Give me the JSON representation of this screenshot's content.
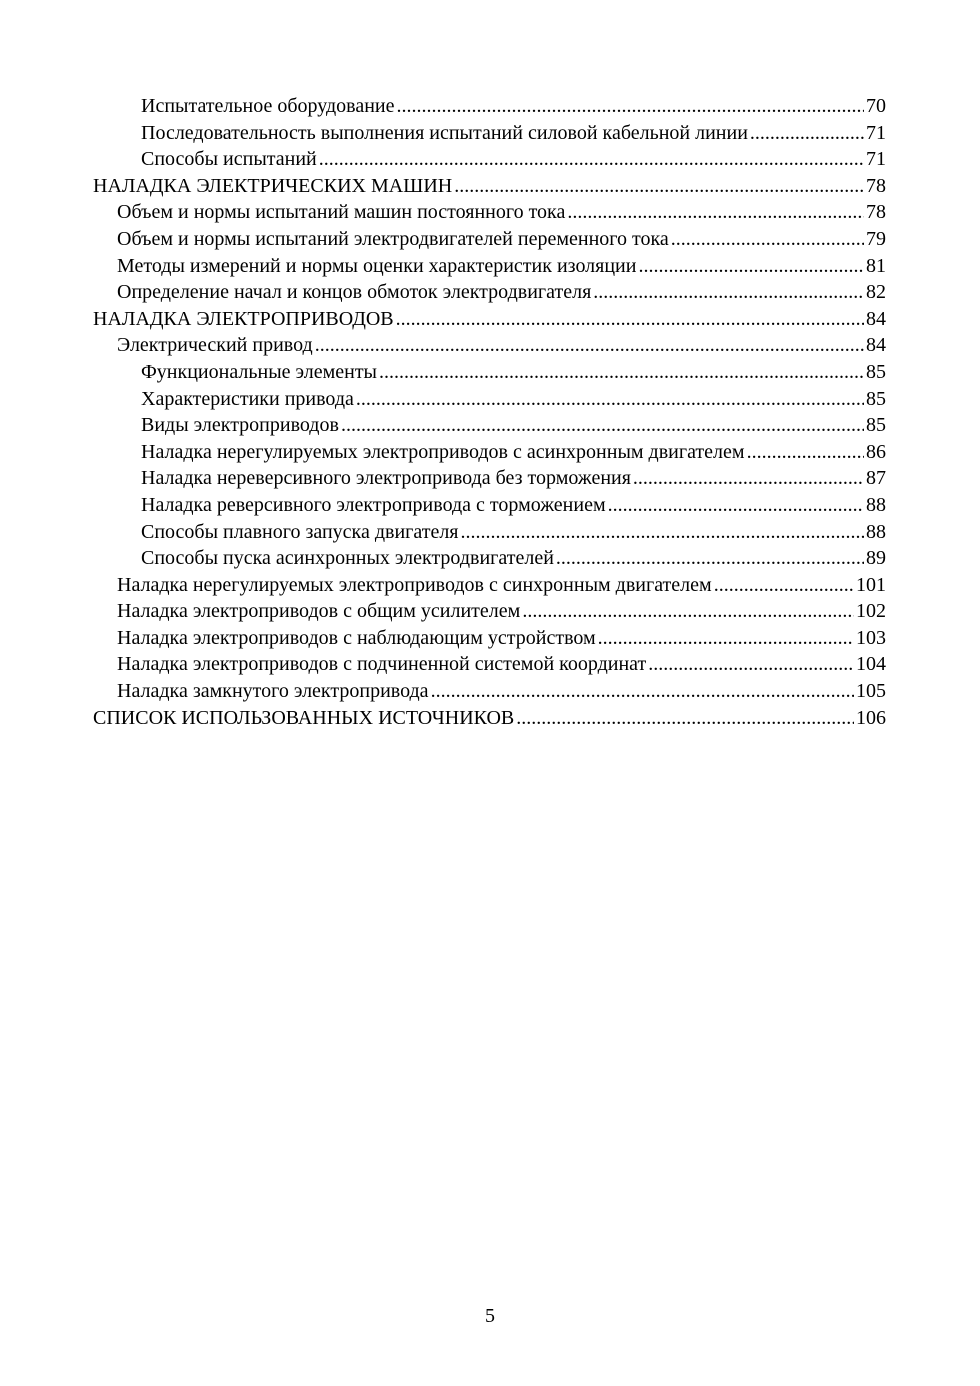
{
  "toc": [
    {
      "level": 2,
      "title": "Испытательное оборудование",
      "page": "70"
    },
    {
      "level": 2,
      "title": "Последовательность выполнения испытаний силовой кабельной линии",
      "page": "71"
    },
    {
      "level": 2,
      "title": "Способы испытаний",
      "page": "71"
    },
    {
      "level": 0,
      "title": "НАЛАДКА ЭЛЕКТРИЧЕСКИХ МАШИН",
      "page": "78"
    },
    {
      "level": 1,
      "title": "Объем и нормы испытаний машин постоянного тока",
      "page": "78"
    },
    {
      "level": 1,
      "title": "Объем и нормы испытаний электродвигателей переменного тока",
      "page": "79"
    },
    {
      "level": 1,
      "title": "Методы измерений и нормы оценки характеристик изоляции",
      "page": "81"
    },
    {
      "level": 1,
      "title": "Определение начал и концов обмоток электродвигателя",
      "page": "82"
    },
    {
      "level": 0,
      "title": "НАЛАДКА ЭЛЕКТРОПРИВОДОВ",
      "page": "84"
    },
    {
      "level": 1,
      "title": "Электрический привод",
      "page": "84"
    },
    {
      "level": 2,
      "title": "Функциональные элементы",
      "page": "85"
    },
    {
      "level": 2,
      "title": "Характеристики привода",
      "page": "85"
    },
    {
      "level": 2,
      "title": "Виды электроприводов",
      "page": "85"
    },
    {
      "level": 2,
      "title": "Наладка нерегулируемых электроприводов с асинхронным двигателем",
      "page": "86"
    },
    {
      "level": 2,
      "title": "Наладка нереверсивного электропривода без торможения",
      "page": "87"
    },
    {
      "level": 2,
      "title": "Наладка реверсивного электропривода с торможением",
      "page": "88"
    },
    {
      "level": 2,
      "title": "Способы плавного запуска двигателя",
      "page": "88"
    },
    {
      "level": 2,
      "title": "Способы пуска асинхронных электродвигателей",
      "page": "89"
    },
    {
      "level": 1,
      "title": "Наладка нерегулируемых электроприводов с синхронным двигателем",
      "page": "101"
    },
    {
      "level": 1,
      "title": "Наладка электроприводов с общим усилителем",
      "page": "102"
    },
    {
      "level": 1,
      "title": "Наладка электроприводов с наблюдающим устройством",
      "page": "103"
    },
    {
      "level": 1,
      "title": "Наладка электроприводов с подчиненной системой координат",
      "page": "104"
    },
    {
      "level": 1,
      "title": "Наладка замкнутого электропривода",
      "page": "105"
    },
    {
      "level": 0,
      "title": "СПИСОК ИСПОЛЬЗОВАННЫХ ИСТОЧНИКОВ",
      "page": "106"
    }
  ],
  "page_number": "5"
}
